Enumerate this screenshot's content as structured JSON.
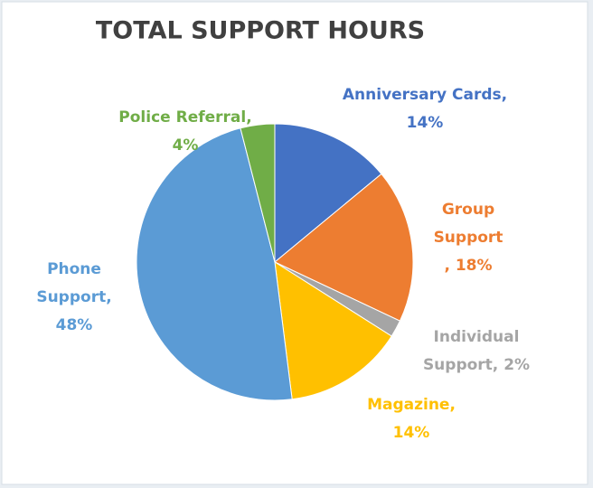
{
  "chart_data": {
    "type": "pie",
    "title": "TOTAL SUPPORT HOURS",
    "values": [
      14,
      18,
      2,
      14,
      48,
      4
    ],
    "value_labels": [
      [
        "Anniversary Cards,",
        "14%"
      ],
      [
        "Group",
        "Support",
        ", 18%"
      ],
      [
        "Individual",
        "Support, 2%"
      ],
      [
        "Magazine,",
        "14%"
      ],
      [
        "Phone",
        "Support,",
        "48%"
      ],
      [
        "Police Referral,",
        "4%"
      ]
    ],
    "colors": [
      "#4472c4",
      "#ed7d31",
      "#a5a5a5",
      "#ffc000",
      "#5b9bd5",
      "#70ad47"
    ]
  }
}
